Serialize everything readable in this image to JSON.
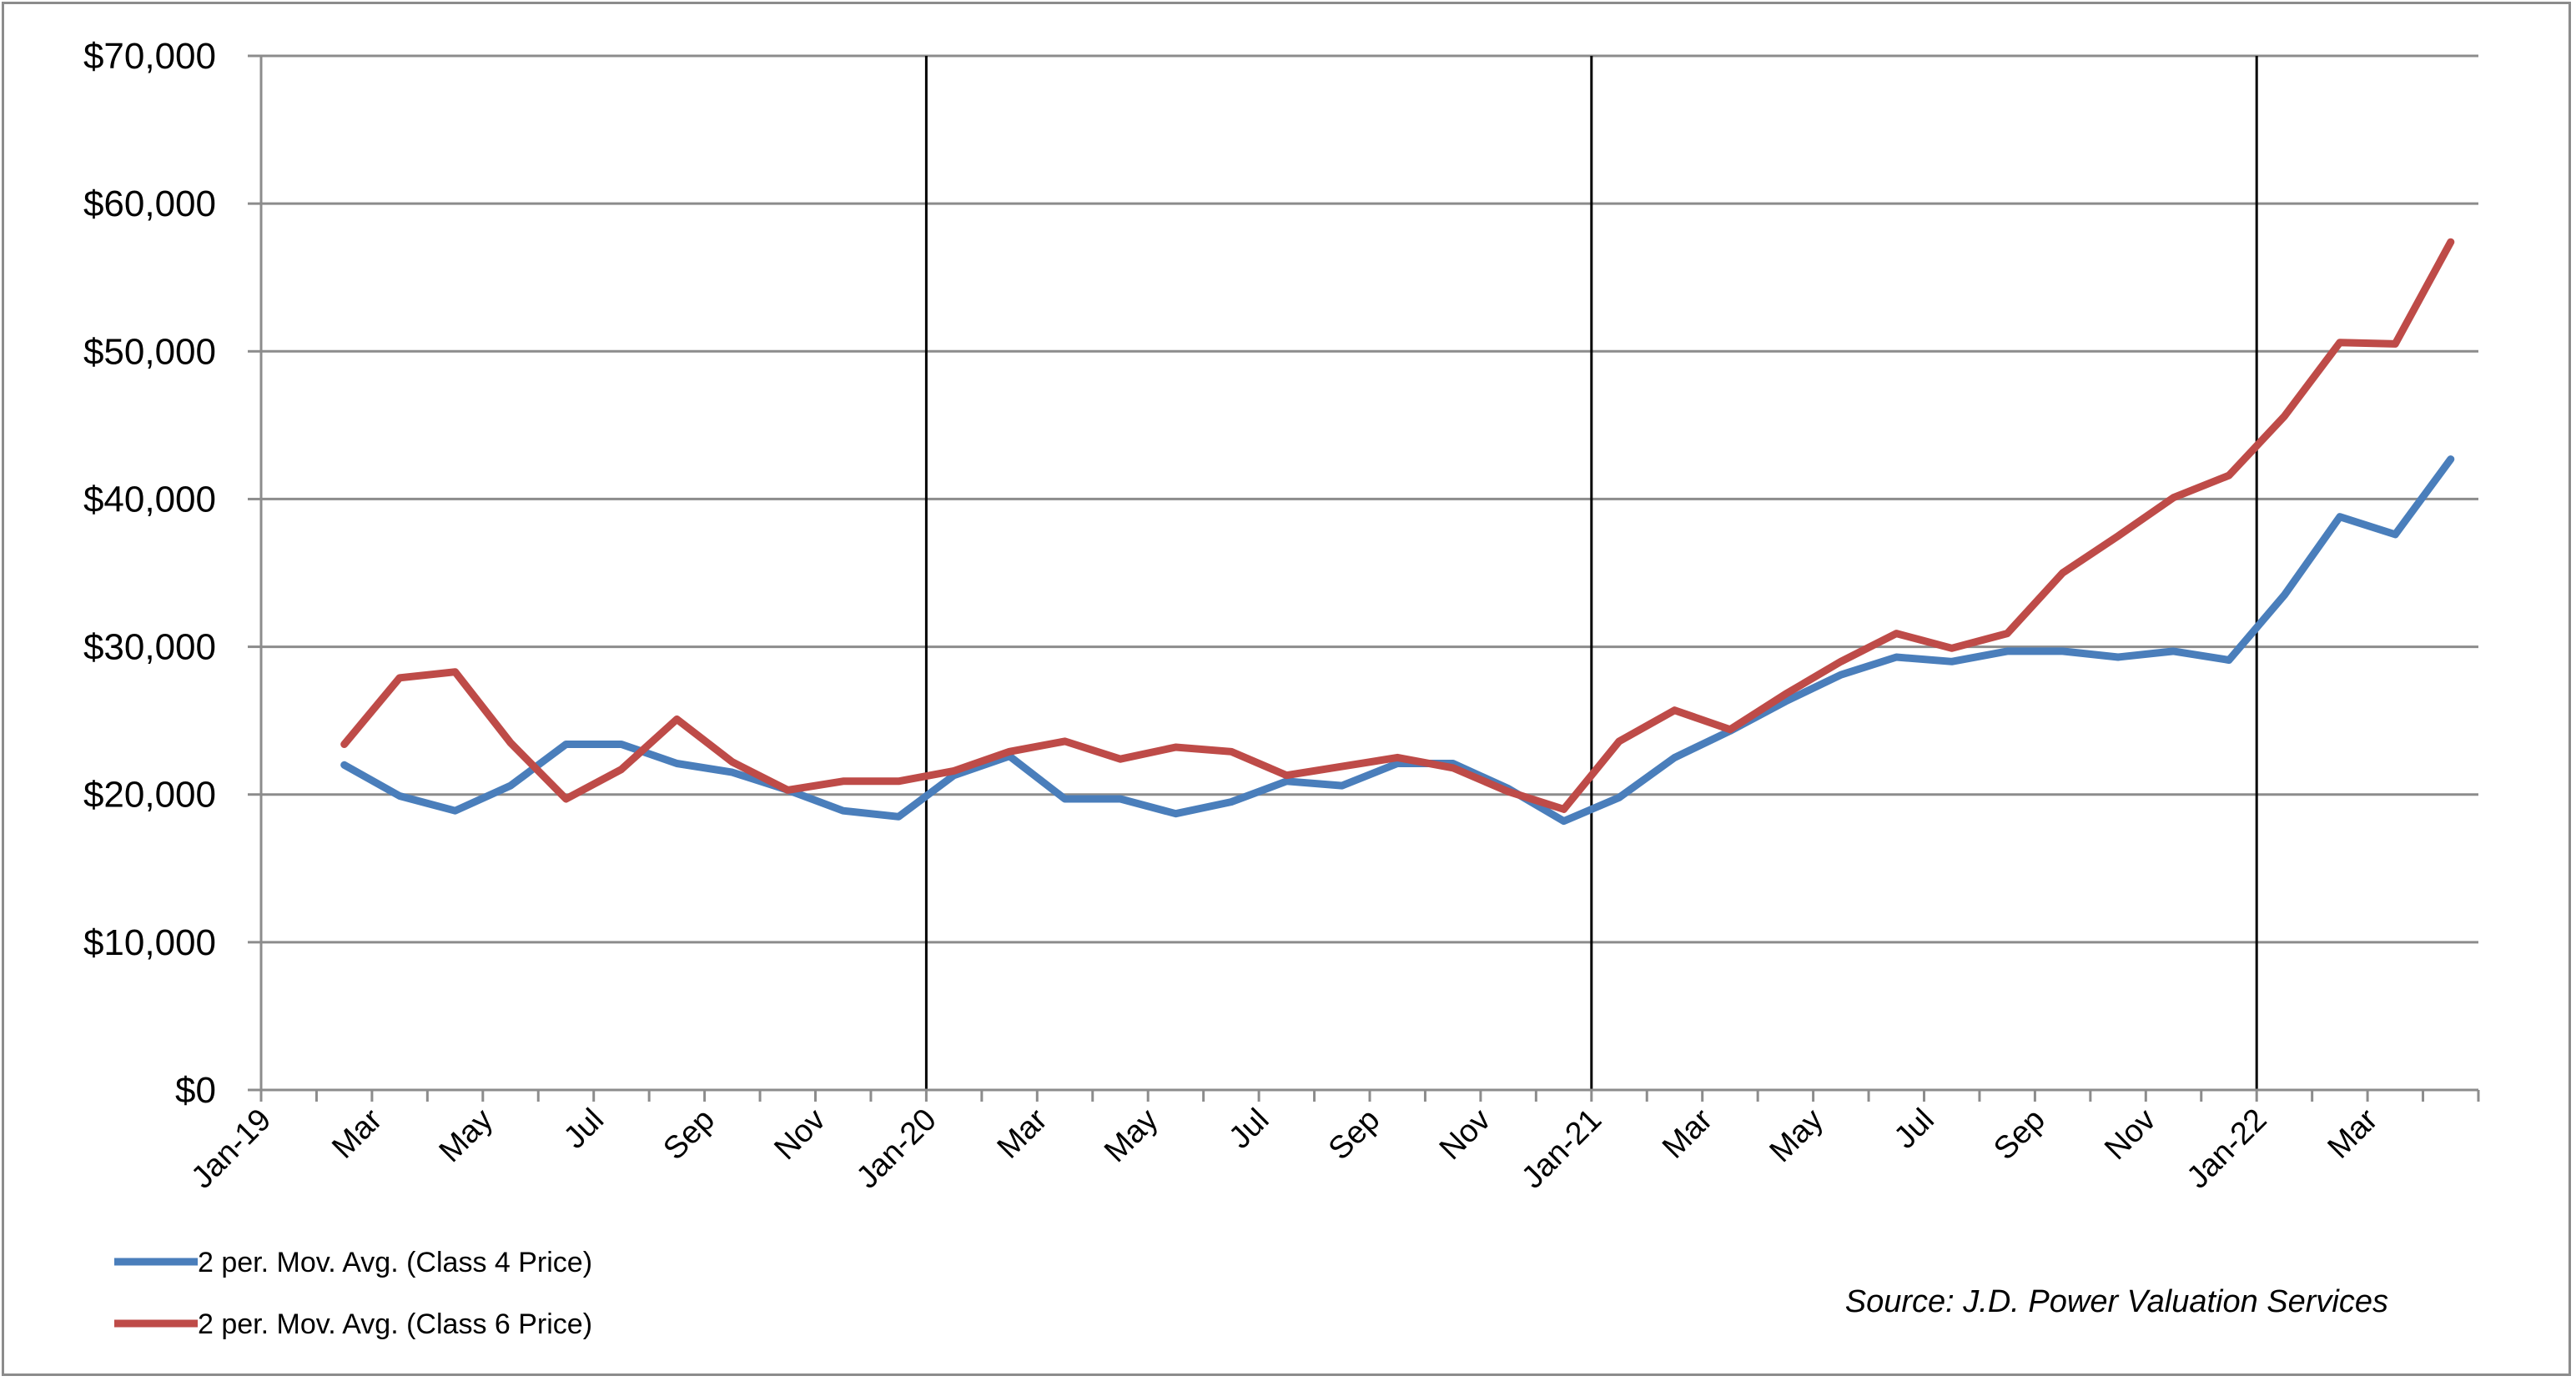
{
  "chart_data": {
    "type": "line",
    "title": "",
    "xlabel": "",
    "ylabel": "",
    "ylim": [
      0,
      70000
    ],
    "yticks": [
      "$0",
      "$10,000",
      "$20,000",
      "$30,000",
      "$40,000",
      "$50,000",
      "$60,000",
      "$70,000"
    ],
    "grid": "horizontal",
    "legend_position": "bottom-left",
    "year_dividers": [
      "Jan-20",
      "Jan-21",
      "Jan-22"
    ],
    "x_tick_labels": [
      "Jan-19",
      "Mar",
      "May",
      "Jul",
      "Sep",
      "Nov",
      "Jan-20",
      "Mar",
      "May",
      "Jul",
      "Sep",
      "Nov",
      "Jan-21",
      "Mar",
      "May",
      "Jul",
      "Sep",
      "Nov",
      "Jan-22",
      "Mar"
    ],
    "x": [
      "Jan-19",
      "Feb-19",
      "Mar-19",
      "Apr-19",
      "May-19",
      "Jun-19",
      "Jul-19",
      "Aug-19",
      "Sep-19",
      "Oct-19",
      "Nov-19",
      "Dec-19",
      "Jan-20",
      "Feb-20",
      "Mar-20",
      "Apr-20",
      "May-20",
      "Jun-20",
      "Jul-20",
      "Aug-20",
      "Sep-20",
      "Oct-20",
      "Nov-20",
      "Dec-20",
      "Jan-21",
      "Feb-21",
      "Mar-21",
      "Apr-21",
      "May-21",
      "Jun-21",
      "Jul-21",
      "Aug-21",
      "Sep-21",
      "Oct-21",
      "Nov-21",
      "Dec-21",
      "Jan-22",
      "Feb-22",
      "Mar-22",
      "Apr-22"
    ],
    "series": [
      {
        "name": "2 per. Mov. Avg. (Class 4 Price)",
        "color": "#4a7ebb",
        "values": [
          null,
          22000,
          19900,
          18900,
          20600,
          23400,
          23400,
          22100,
          21500,
          20300,
          18900,
          18500,
          21300,
          22600,
          19700,
          19700,
          18700,
          19500,
          20900,
          20600,
          22100,
          22100,
          20400,
          18200,
          19800,
          22500,
          24300,
          26300,
          28100,
          29300,
          29000,
          29700,
          29700,
          29300,
          29700,
          29100,
          33500,
          38800,
          37600,
          42700
        ]
      },
      {
        "name": "2 per. Mov. Avg. (Class 6 Price)",
        "color": "#be4b48",
        "values": [
          null,
          23400,
          27900,
          28300,
          23500,
          19700,
          21700,
          25100,
          22200,
          20300,
          20900,
          20900,
          21600,
          22900,
          23600,
          22400,
          23200,
          22900,
          21300,
          21900,
          22500,
          21800,
          20200,
          19000,
          23600,
          25700,
          24400,
          26800,
          29000,
          30900,
          29900,
          30900,
          35000,
          37500,
          40100,
          41600,
          45600,
          50600,
          50500,
          57400
        ]
      }
    ],
    "annotations": [
      {
        "text": "Source: J.D. Power Valuation Services",
        "position": "bottom-right"
      }
    ]
  }
}
